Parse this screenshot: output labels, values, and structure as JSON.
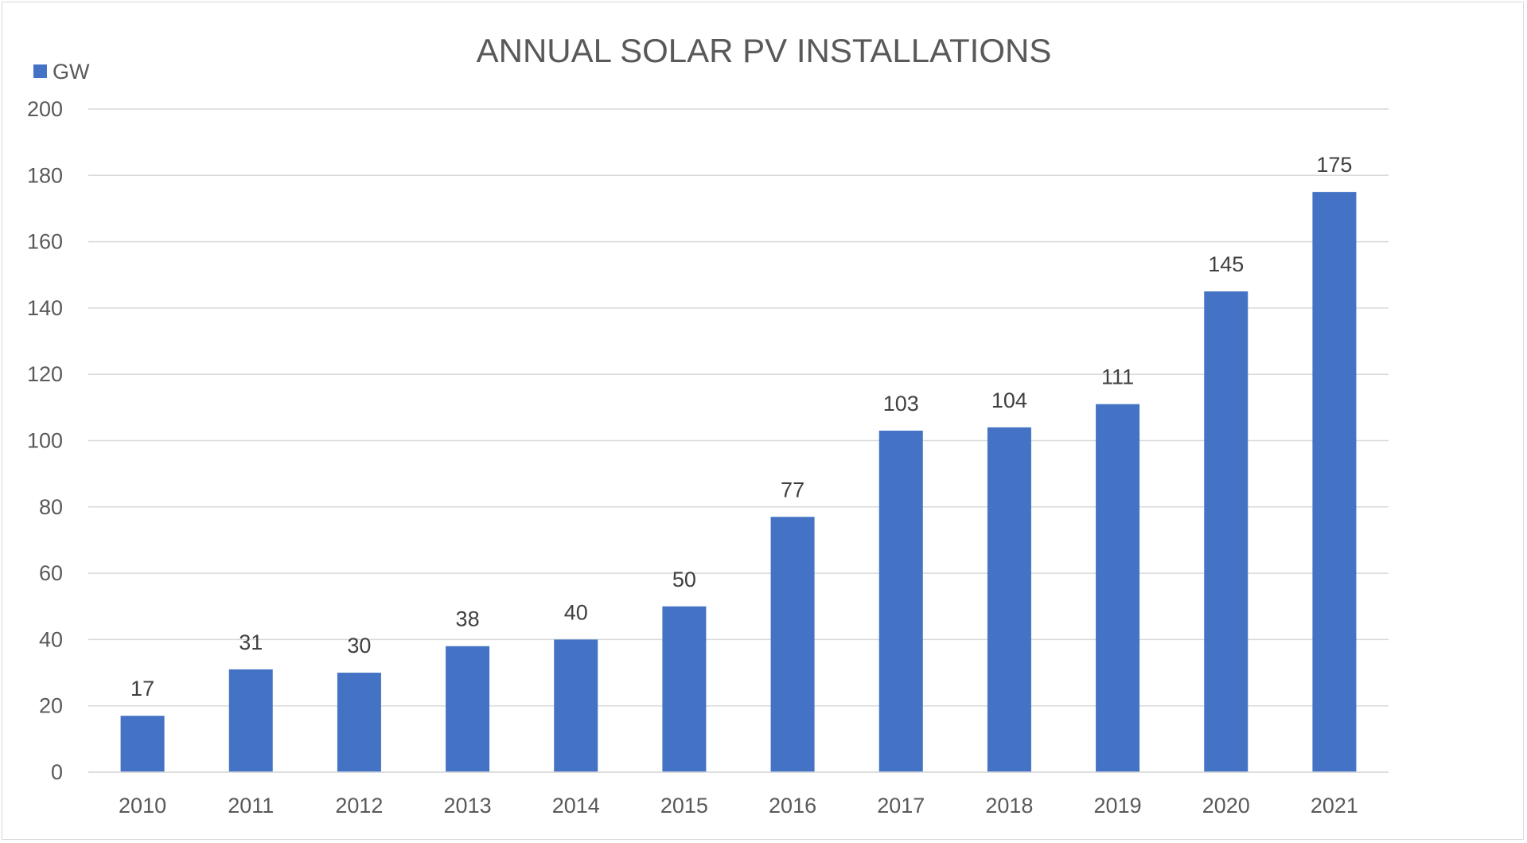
{
  "chart_data": {
    "type": "bar",
    "title": "ANNUAL SOLAR PV INSTALLATIONS",
    "xlabel": "",
    "ylabel": "",
    "categories": [
      "2010",
      "2011",
      "2012",
      "2013",
      "2014",
      "2015",
      "2016",
      "2017",
      "2018",
      "2019",
      "2020",
      "2021"
    ],
    "series": [
      {
        "name": "GW",
        "color": "#4472c4",
        "values": [
          17,
          31,
          30,
          38,
          40,
          50,
          77,
          103,
          104,
          111,
          145,
          175
        ],
        "data_labels": [
          "17",
          "31",
          "30",
          "38",
          "40",
          "50",
          "77",
          "103",
          "104",
          "111",
          "145",
          "175"
        ]
      }
    ],
    "ylim": [
      0,
      200
    ],
    "yticks": [
      "0",
      "20",
      "40",
      "60",
      "80",
      "100",
      "120",
      "140",
      "160",
      "180",
      "200"
    ],
    "grid": true,
    "legend": "top-left",
    "gridline_color": "#d9d9d9",
    "text_color": "#595959"
  }
}
